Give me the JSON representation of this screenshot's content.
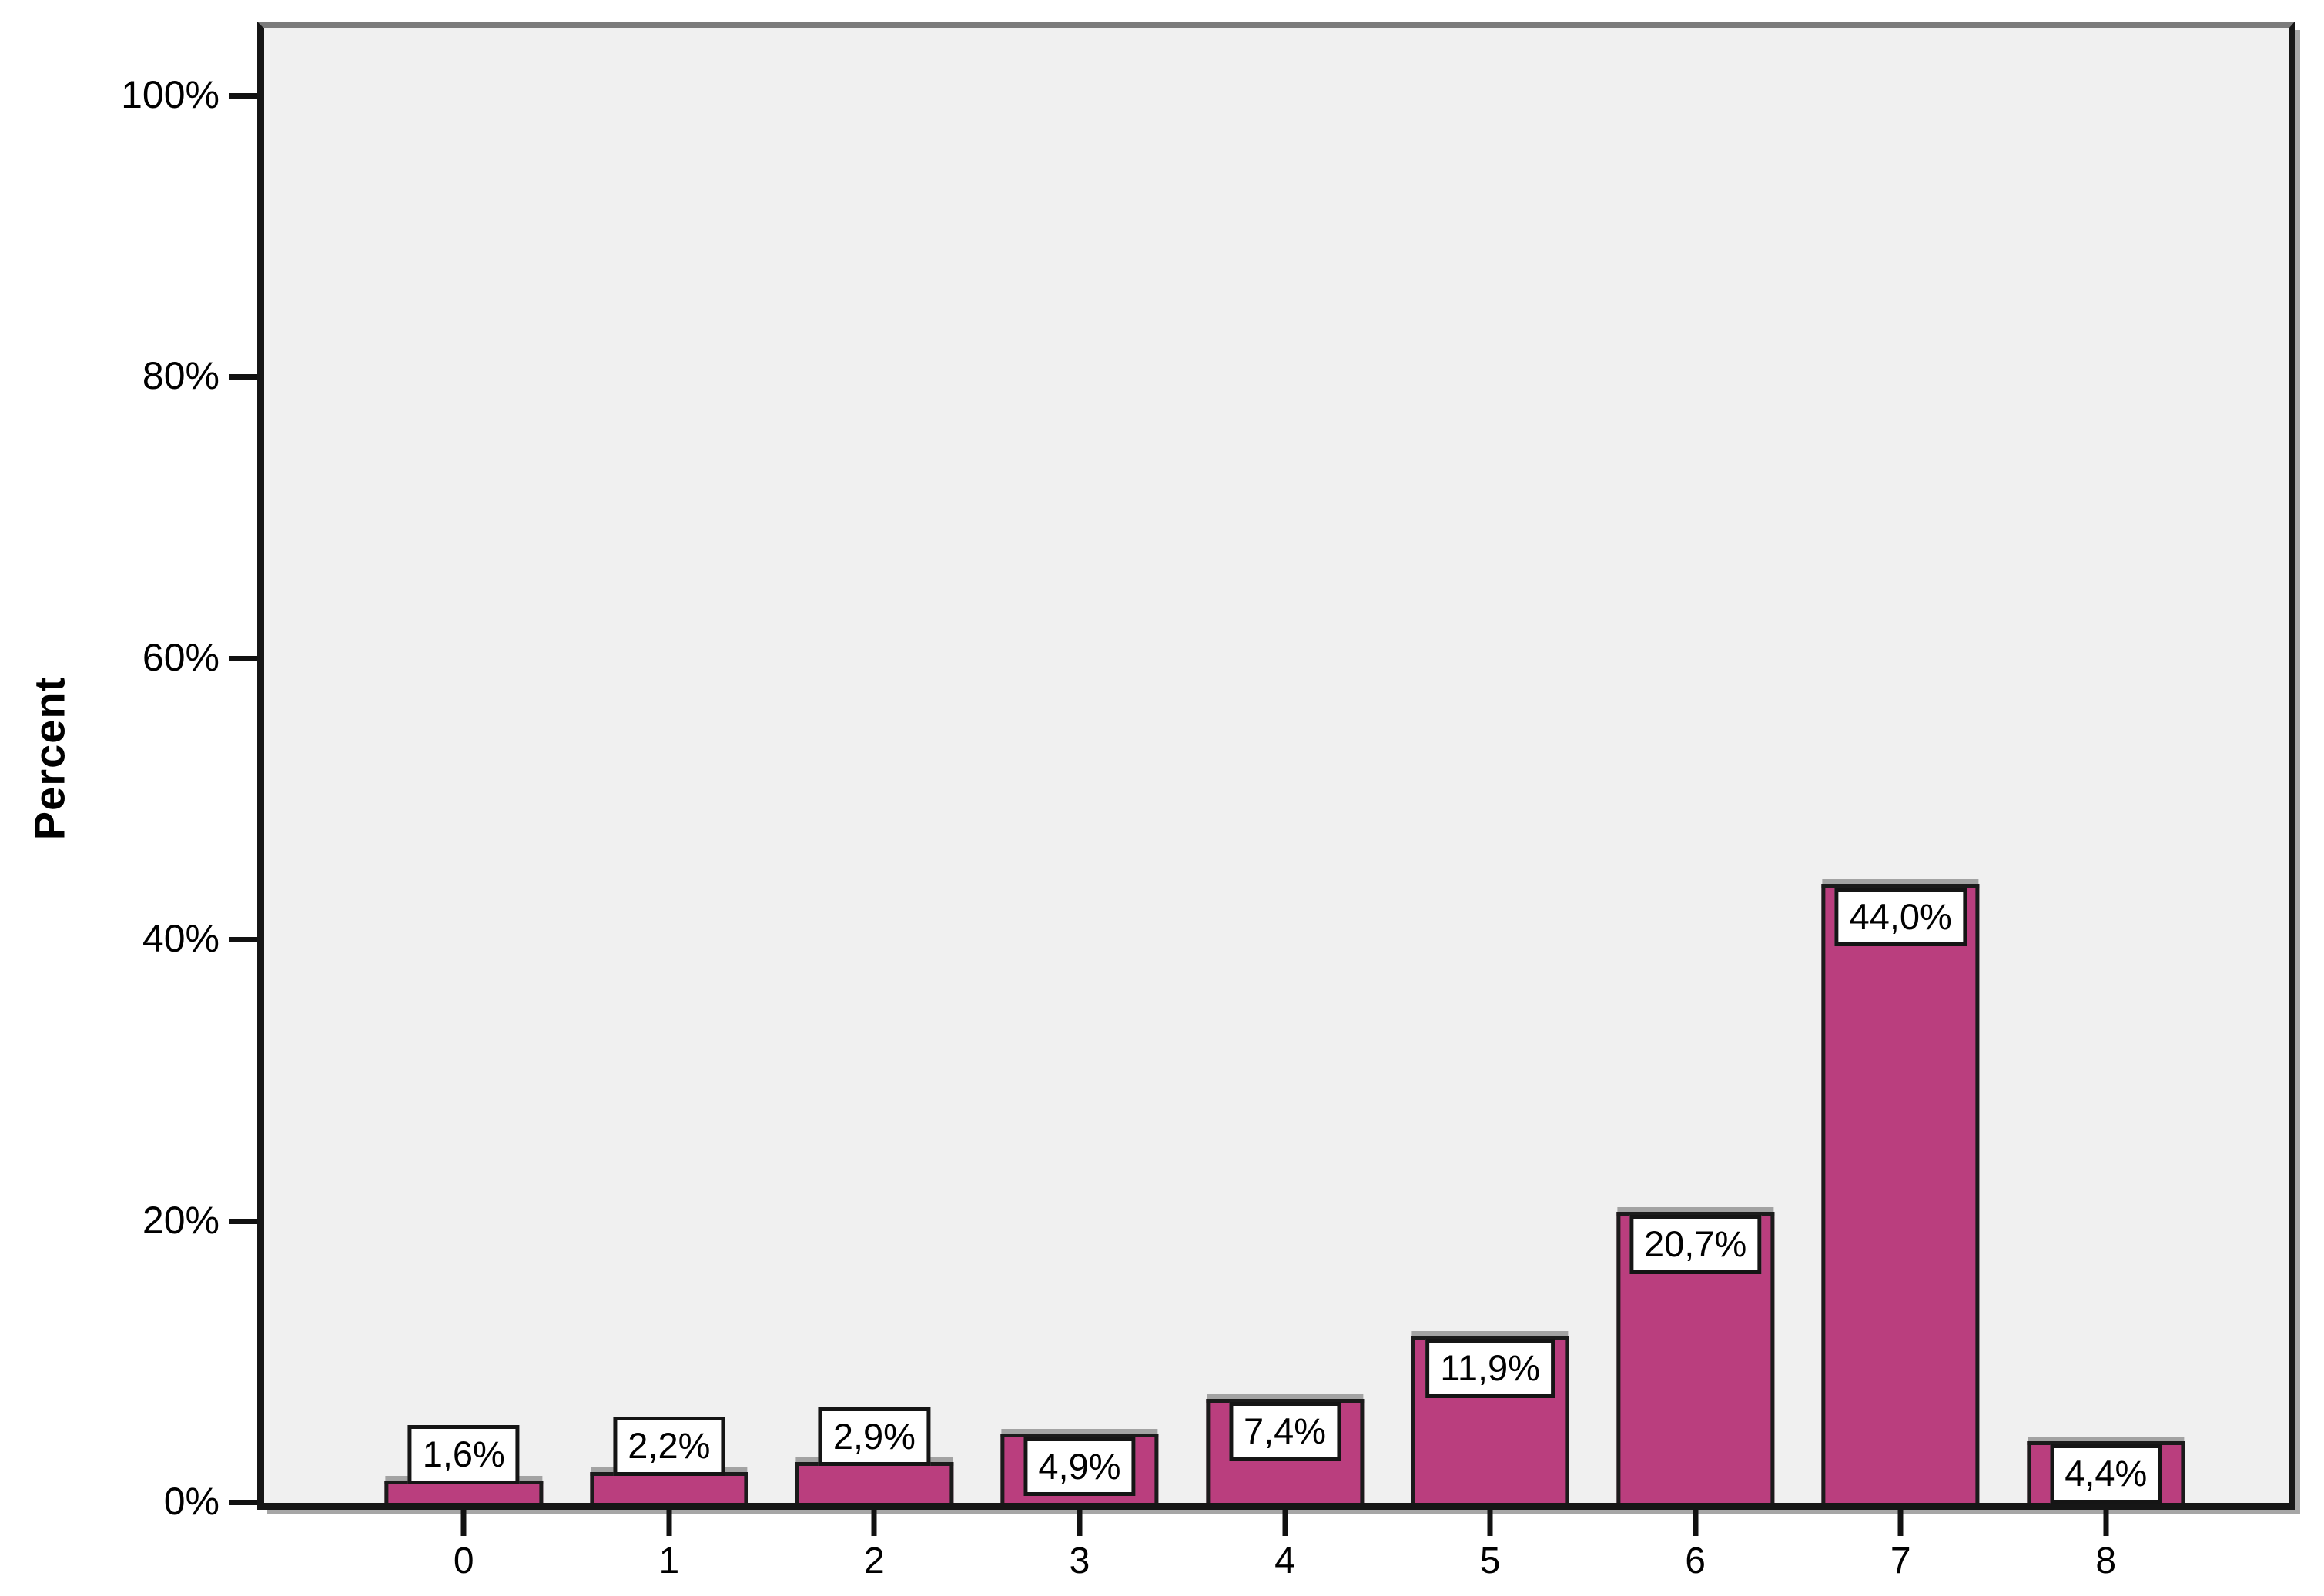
{
  "chart_data": {
    "type": "bar",
    "title": "",
    "xlabel": "",
    "ylabel": "Percent",
    "categories": [
      "0",
      "1",
      "2",
      "3",
      "4",
      "5",
      "6",
      "7",
      "8"
    ],
    "values": [
      1.6,
      2.2,
      2.9,
      4.9,
      7.4,
      11.9,
      20.7,
      44.0,
      4.4
    ],
    "bar_value_labels": [
      "1,6%",
      "2,2%",
      "2,9%",
      "4,9%",
      "7,4%",
      "11,9%",
      "20,7%",
      "44,0%",
      "4,4%"
    ],
    "ylim": [
      0,
      100
    ],
    "ytick_values": [
      0,
      20,
      40,
      60,
      80,
      100
    ],
    "ytick_labels": [
      "0%",
      "20%",
      "40%",
      "60%",
      "80%",
      "100%"
    ],
    "grid": false,
    "legend_position": "none",
    "colors": {
      "bar_fill": "#BA3E7E",
      "bar_border": "#1b1b1b",
      "plot_background": "#F0F0F0",
      "page_background": "#FFFFFF",
      "axis": "#111111",
      "value_label_box_fill": "#FFFFFF",
      "value_label_box_border": "#151515",
      "text": "#000000"
    }
  }
}
